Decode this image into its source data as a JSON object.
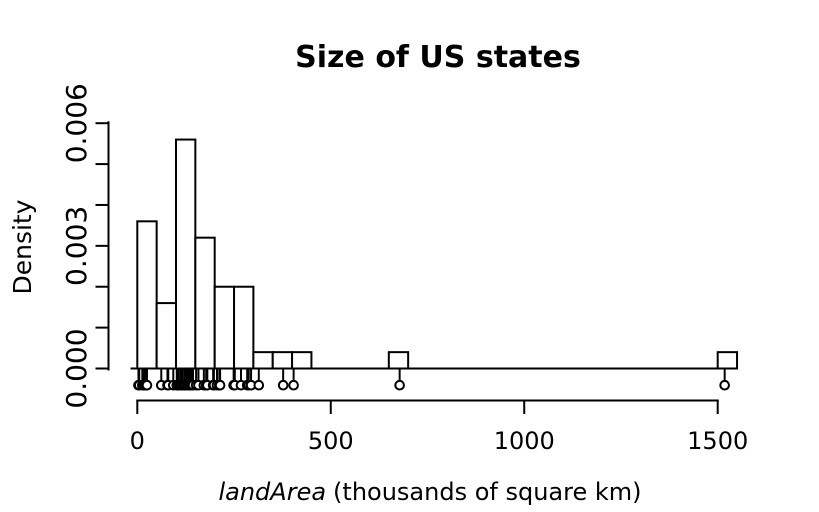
{
  "page": {
    "background": "#ffffff",
    "foreground": "#000000"
  },
  "chart_data": {
    "type": "bar",
    "subtype": "density-histogram-with-data-points",
    "title": "Size of US states",
    "xlabel_variable": "landArea",
    "xlabel_rest": "(thousands of square km)",
    "ylabel": "Density",
    "grid": false,
    "legend": "none",
    "x_axis": {
      "range": [
        0,
        1550
      ],
      "ticks": [
        0,
        500,
        1000,
        1500
      ],
      "tick_labels": [
        "0",
        "500",
        "1000",
        "1500"
      ]
    },
    "y_axis": {
      "range": [
        0,
        0.006
      ],
      "tick_step": 0.001,
      "labeled_ticks": [
        0,
        0.003,
        0.006
      ],
      "tick_labels": [
        "0.000",
        "0.003",
        "0.006"
      ]
    },
    "bin_width": 50,
    "bins": [
      {
        "start": 0,
        "end": 50,
        "count": 9,
        "density": 0.0036
      },
      {
        "start": 50,
        "end": 100,
        "count": 4,
        "density": 0.0016
      },
      {
        "start": 100,
        "end": 150,
        "count": 14,
        "density": 0.0056
      },
      {
        "start": 150,
        "end": 200,
        "count": 8,
        "density": 0.0032
      },
      {
        "start": 200,
        "end": 250,
        "count": 5,
        "density": 0.002
      },
      {
        "start": 250,
        "end": 300,
        "count": 5,
        "density": 0.002
      },
      {
        "start": 300,
        "end": 350,
        "count": 1,
        "density": 0.0004
      },
      {
        "start": 350,
        "end": 400,
        "count": 1,
        "density": 0.0004
      },
      {
        "start": 400,
        "end": 450,
        "count": 1,
        "density": 0.0004
      },
      {
        "start": 650,
        "end": 700,
        "count": 1,
        "density": 0.0004
      },
      {
        "start": 1500,
        "end": 1550,
        "count": 1,
        "density": 0.0004
      }
    ],
    "points": [
      3,
      5,
      13,
      17,
      19,
      20,
      23,
      24,
      25,
      62,
      78,
      80,
      93,
      102,
      103,
      106,
      107,
      112,
      116,
      121,
      122,
      126,
      131,
      135,
      139,
      140,
      144,
      152,
      158,
      172,
      178,
      179,
      181,
      196,
      198,
      206,
      212,
      213,
      214,
      249,
      252,
      268,
      284,
      288,
      294,
      314,
      377,
      404,
      678,
      1518
    ]
  }
}
